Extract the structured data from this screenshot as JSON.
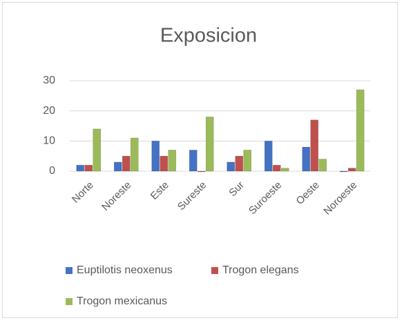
{
  "chart_data": {
    "type": "bar",
    "title": "Exposicion",
    "categories": [
      "Norte",
      "Noreste",
      "Este",
      "Sureste",
      "Sur",
      "Suroeste",
      "Oeste",
      "Noroeste"
    ],
    "series": [
      {
        "name": "Euptilotis neoxenus",
        "color": "#4472c4",
        "values": [
          2,
          3,
          10,
          7,
          3,
          10,
          8,
          0
        ]
      },
      {
        "name": "Trogon elegans",
        "color": "#c0504d",
        "values": [
          2,
          5,
          5,
          0,
          5,
          2,
          17,
          1
        ]
      },
      {
        "name": "Trogon mexicanus",
        "color": "#9bbb59",
        "values": [
          14,
          11,
          7,
          18,
          7,
          1,
          4,
          27
        ]
      }
    ],
    "ylim": [
      0,
      30
    ],
    "yticks": [
      0,
      10,
      20,
      30
    ],
    "grid": true
  }
}
